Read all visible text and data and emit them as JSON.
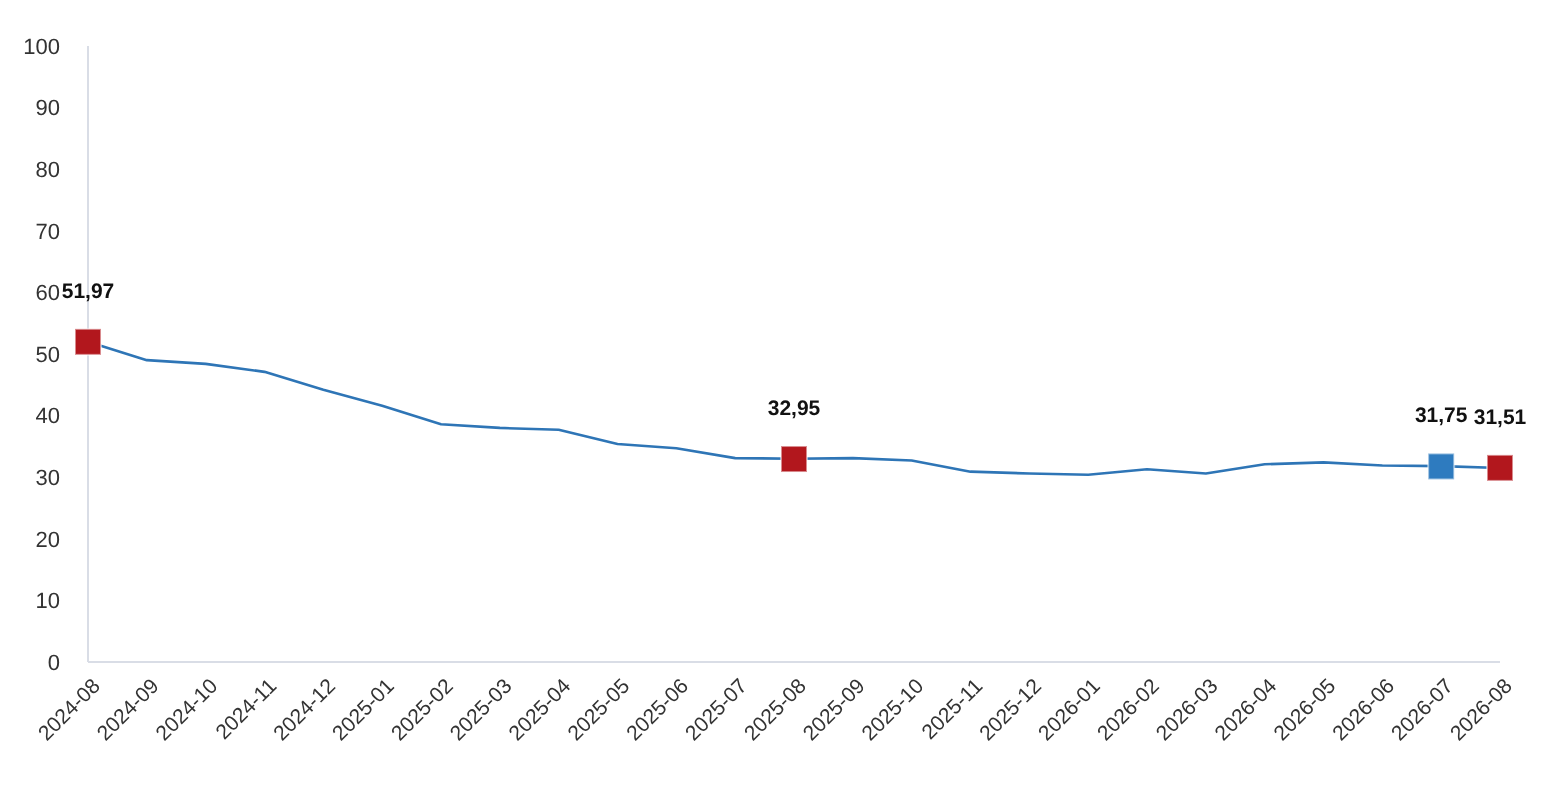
{
  "chart_data": {
    "type": "line",
    "categories": [
      "2024-08",
      "2024-09",
      "2024-10",
      "2024-11",
      "2024-12",
      "2025-01",
      "2025-02",
      "2025-03",
      "2025-04",
      "2025-05",
      "2025-06",
      "2025-07",
      "2025-08",
      "2025-09",
      "2025-10",
      "2025-11",
      "2025-12",
      "2026-01",
      "2026-02",
      "2026-03",
      "2026-04",
      "2026-05",
      "2026-06",
      "2026-07",
      "2026-08"
    ],
    "series": [
      {
        "color": "#2e75b6",
        "marker": "none",
        "values": [
          52.0,
          49.0,
          48.4,
          47.1,
          44.2,
          41.6,
          38.6,
          38.0,
          37.7,
          35.4,
          34.7,
          33.1,
          33.0,
          33.1,
          32.7,
          30.9,
          30.6,
          30.4,
          31.3,
          30.6,
          32.1,
          32.4,
          31.9,
          31.8,
          31.5
        ]
      },
      {
        "type": "scatter",
        "color": "#b2171d",
        "marker": "square",
        "values": [
          51.97,
          null,
          null,
          null,
          null,
          null,
          null,
          null,
          null,
          null,
          null,
          null,
          32.95,
          null,
          null,
          null,
          null,
          null,
          null,
          null,
          null,
          null,
          null,
          null,
          31.51
        ],
        "value_labels": [
          "51,97",
          null,
          null,
          null,
          null,
          null,
          null,
          null,
          null,
          null,
          null,
          null,
          "32,95",
          null,
          null,
          null,
          null,
          null,
          null,
          null,
          null,
          null,
          null,
          null,
          "31,51"
        ]
      },
      {
        "type": "scatter",
        "color": "#2e7bbf",
        "marker": "square",
        "values": [
          null,
          null,
          null,
          null,
          null,
          null,
          null,
          null,
          null,
          null,
          null,
          null,
          null,
          null,
          null,
          null,
          null,
          null,
          null,
          null,
          null,
          null,
          null,
          31.75,
          null
        ],
        "value_labels": [
          null,
          null,
          null,
          null,
          null,
          null,
          null,
          null,
          null,
          null,
          null,
          null,
          null,
          null,
          null,
          null,
          null,
          null,
          null,
          null,
          null,
          null,
          null,
          "31,75",
          null
        ]
      }
    ],
    "ylim": [
      0,
      100
    ],
    "yticks": [
      0,
      10,
      20,
      30,
      40,
      50,
      60,
      70,
      80,
      90,
      100
    ],
    "grid": false
  }
}
